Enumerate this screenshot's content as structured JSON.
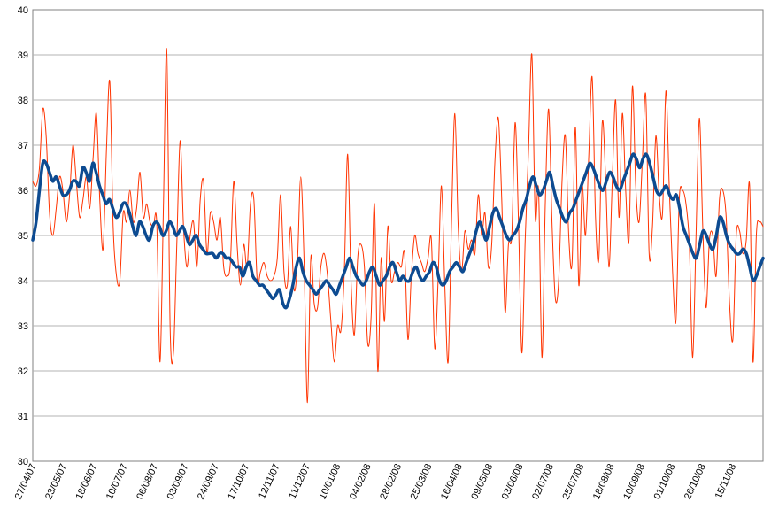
{
  "chart_data": {
    "type": "line",
    "title": "",
    "xlabel": "",
    "ylabel": "",
    "ylim": [
      30,
      40
    ],
    "yticks": [
      "30",
      "31",
      "32",
      "33",
      "34",
      "35",
      "36",
      "37",
      "38",
      "39",
      "40"
    ],
    "grid": "horizontal",
    "legend": "none",
    "x_tick_labels": [
      "27/04/07",
      "23/05/07",
      "18/06/07",
      "10/07/07",
      "06/08/07",
      "03/09/07",
      "24/09/07",
      "17/10/07",
      "12/11/07",
      "11/12/07",
      "10/01/08",
      "04/02/08",
      "28/02/08",
      "25/03/08",
      "16/04/08",
      "09/05/08",
      "03/06/08",
      "02/07/08",
      "25/07/08",
      "18/08/08",
      "10/09/08",
      "01/10/08",
      "26/10/08",
      "15/11/08"
    ],
    "series": [
      {
        "color": "#ff3300",
        "style": "thin",
        "values": [
          36.2,
          36.1,
          36.5,
          37.8,
          37.2,
          35.5,
          35.0,
          35.6,
          36.3,
          36.0,
          35.3,
          35.9,
          37.0,
          36.2,
          35.4,
          35.8,
          36.3,
          35.6,
          36.7,
          37.7,
          35.8,
          34.7,
          36.9,
          38.4,
          35.2,
          34.1,
          34.0,
          35.5,
          35.3,
          36.0,
          35.3,
          35.6,
          36.4,
          35.4,
          35.7,
          35.3,
          35.2,
          35.3,
          32.2,
          35.6,
          39.1,
          33.0,
          32.4,
          34.8,
          37.1,
          35.2,
          34.3,
          35.0,
          35.3,
          34.3,
          35.8,
          36.2,
          34.6,
          35.5,
          35.3,
          34.9,
          35.4,
          34.3,
          34.1,
          34.4,
          36.2,
          34.8,
          33.9,
          34.8,
          34.3,
          35.7,
          35.8,
          34.0,
          34.2,
          34.4,
          34.1,
          34.0,
          34.1,
          34.5,
          35.9,
          34.2,
          33.9,
          35.2,
          33.8,
          34.4,
          36.3,
          34.4,
          31.3,
          34.5,
          33.5,
          33.4,
          34.3,
          34.6,
          34.1,
          33.1,
          32.2,
          33.0,
          32.9,
          34.2,
          36.8,
          34.0,
          32.8,
          34.5,
          34.8,
          34.3,
          32.6,
          33.2,
          35.7,
          32.0,
          34.5,
          33.1,
          35.2,
          34.0,
          34.2,
          34.4,
          34.3,
          34.6,
          32.7,
          34.1,
          35.0,
          34.6,
          34.4,
          34.2,
          34.5,
          34.9,
          32.5,
          34.0,
          36.1,
          33.9,
          32.2,
          35.3,
          37.7,
          35.2,
          34.2,
          35.1,
          34.7,
          34.9,
          34.6,
          35.9,
          35.0,
          35.5,
          34.3,
          34.8,
          36.7,
          37.6,
          35.8,
          33.3,
          34.8,
          35.0,
          37.5,
          35.3,
          32.4,
          34.9,
          36.9,
          39.0,
          35.4,
          36.0,
          32.3,
          35.7,
          37.8,
          35.3,
          33.6,
          34.0,
          36.2,
          37.2,
          35.0,
          34.4,
          37.4,
          33.9,
          36.1,
          35.0,
          36.8,
          38.5,
          35.4,
          34.5,
          37.5,
          36.3,
          34.3,
          36.2,
          38.0,
          35.4,
          37.7,
          36.0,
          34.9,
          38.3,
          36.1,
          35.3,
          36.7,
          38.1,
          34.6,
          35.2,
          37.2,
          35.9,
          35.5,
          38.2,
          36.1,
          34.2,
          33.1,
          35.8,
          36.0,
          35.7,
          34.8,
          32.3,
          35.0,
          37.6,
          35.2,
          33.4,
          34.9,
          35.0,
          34.1,
          35.8,
          36.0,
          35.4,
          33.5,
          32.7,
          35.0,
          35.1,
          34.6,
          34.9,
          36.1,
          32.2,
          35.0,
          35.3,
          35.2
        ]
      },
      {
        "color": "#0d4b91",
        "style": "thick",
        "values": [
          34.9,
          35.3,
          36.0,
          36.6,
          36.6,
          36.4,
          36.2,
          36.3,
          36.1,
          35.9,
          35.9,
          36.0,
          36.2,
          36.2,
          36.1,
          36.5,
          36.4,
          36.2,
          36.6,
          36.4,
          36.1,
          35.9,
          35.7,
          35.8,
          35.6,
          35.4,
          35.5,
          35.7,
          35.7,
          35.5,
          35.2,
          35.0,
          35.3,
          35.2,
          35.0,
          34.9,
          35.2,
          35.3,
          35.2,
          35.0,
          35.1,
          35.3,
          35.2,
          35.0,
          35.1,
          35.2,
          35.0,
          34.8,
          34.9,
          35.0,
          34.8,
          34.7,
          34.6,
          34.6,
          34.6,
          34.5,
          34.6,
          34.6,
          34.5,
          34.5,
          34.4,
          34.3,
          34.3,
          34.1,
          34.3,
          34.4,
          34.1,
          34.0,
          33.9,
          33.9,
          33.8,
          33.7,
          33.6,
          33.7,
          33.8,
          33.5,
          33.4,
          33.6,
          33.9,
          34.3,
          34.5,
          34.2,
          34.0,
          33.9,
          33.8,
          33.7,
          33.8,
          33.9,
          34.0,
          33.9,
          33.8,
          33.7,
          33.9,
          34.1,
          34.3,
          34.5,
          34.3,
          34.1,
          34.0,
          33.9,
          34.0,
          34.2,
          34.3,
          34.1,
          33.9,
          34.0,
          34.1,
          34.3,
          34.4,
          34.2,
          34.0,
          34.1,
          34.0,
          34.0,
          34.2,
          34.3,
          34.1,
          34.0,
          34.1,
          34.2,
          34.4,
          34.3,
          34.0,
          33.9,
          34.0,
          34.2,
          34.3,
          34.4,
          34.3,
          34.2,
          34.4,
          34.6,
          34.8,
          35.1,
          35.3,
          35.1,
          34.9,
          35.2,
          35.5,
          35.6,
          35.4,
          35.2,
          35.0,
          34.9,
          35.0,
          35.1,
          35.3,
          35.6,
          35.8,
          36.1,
          36.3,
          36.1,
          35.9,
          36.0,
          36.2,
          36.4,
          36.1,
          35.8,
          35.6,
          35.4,
          35.3,
          35.5,
          35.6,
          35.8,
          36.0,
          36.2,
          36.4,
          36.6,
          36.5,
          36.3,
          36.1,
          36.0,
          36.2,
          36.4,
          36.3,
          36.1,
          36.0,
          36.2,
          36.4,
          36.6,
          36.8,
          36.7,
          36.5,
          36.7,
          36.8,
          36.6,
          36.3,
          36.0,
          35.9,
          36.0,
          36.1,
          35.9,
          35.8,
          35.9,
          35.6,
          35.2,
          35.0,
          34.8,
          34.6,
          34.5,
          34.8,
          35.1,
          35.0,
          34.8,
          34.7,
          35.0,
          35.4,
          35.3,
          35.0,
          34.8,
          34.7,
          34.6,
          34.6,
          34.7,
          34.6,
          34.3,
          34.0,
          34.1,
          34.3,
          34.5
        ]
      }
    ]
  }
}
